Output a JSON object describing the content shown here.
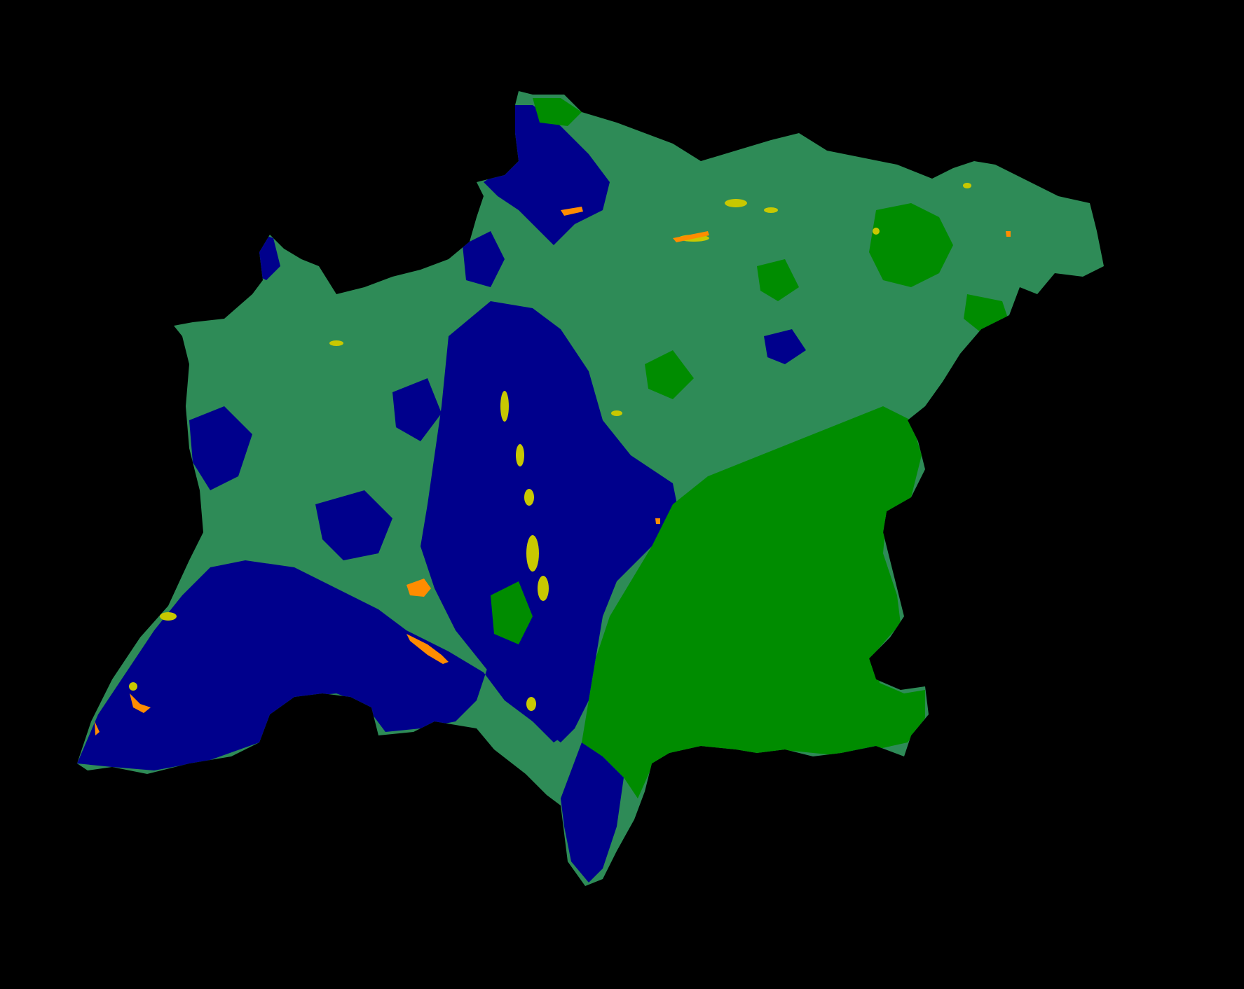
{
  "map": {
    "background": "#000000",
    "classes": [
      {
        "key": "dark-blue",
        "color": "#00008c"
      },
      {
        "key": "medium-green",
        "color": "#2e8b57"
      },
      {
        "key": "bright-green",
        "color": "#008c00"
      },
      {
        "key": "yellow-green",
        "color": "#c8c800"
      },
      {
        "key": "orange",
        "color": "#ff8c00"
      }
    ]
  }
}
